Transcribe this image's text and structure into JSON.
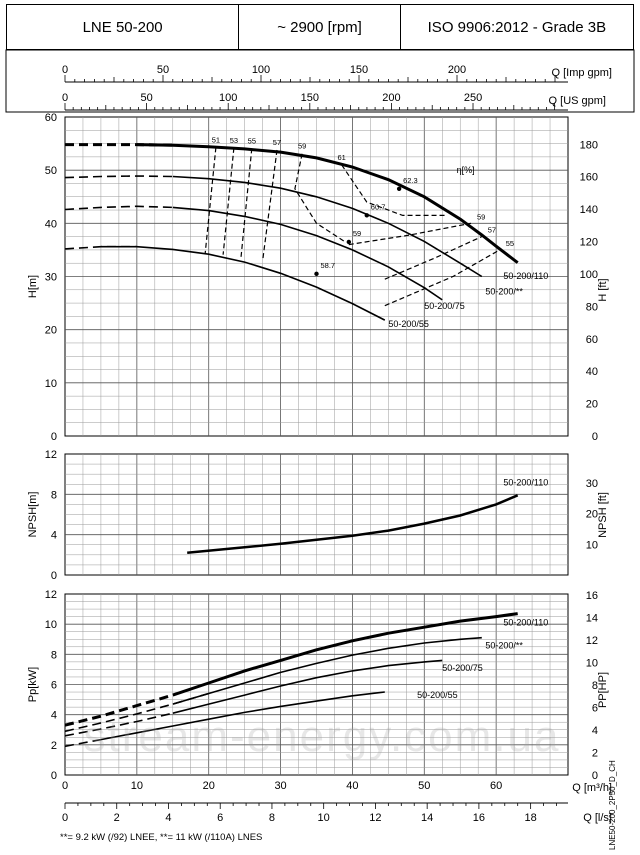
{
  "header": {
    "model": "LNE 50-200",
    "speed": "~ 2900 [rpm]",
    "standard": "ISO 9906:2012 - Grade 3B"
  },
  "footnote": "**= 9.2 kW (/92) LNEE, **= 11 kW (/110A) LNES",
  "doc_id": "LNE50-200_2P50_D_CH",
  "watermark": "stream-energy.com.ua",
  "chart_data": [
    {
      "type": "line",
      "panel": "head",
      "ylabel": "H[m]",
      "ylabel_right": "H [ft]",
      "xlim": [
        0,
        70
      ],
      "ylim": [
        0,
        60
      ],
      "ylim_right_ticks": [
        0,
        20,
        40,
        60,
        80,
        100,
        120,
        140,
        160,
        180
      ],
      "top_axis_imp": {
        "label": "Q [Imp gpm]",
        "ticks": [
          0,
          50,
          100,
          150,
          200
        ]
      },
      "top_axis_us": {
        "label": "Q [US gpm]",
        "ticks": [
          0,
          50,
          100,
          150,
          200,
          250
        ]
      },
      "series": [
        {
          "name": "50-200/110",
          "x": [
            0,
            5,
            10,
            15,
            20,
            25,
            30,
            35,
            40,
            45,
            50,
            55,
            58,
            60,
            63
          ],
          "y": [
            54.8,
            54.8,
            54.8,
            54.7,
            54.4,
            54.0,
            53.4,
            52.3,
            50.6,
            48.2,
            45.0,
            40.8,
            37.8,
            35.7,
            32.6
          ]
        },
        {
          "name": "50-200/**",
          "x": [
            0,
            5,
            10,
            15,
            20,
            25,
            30,
            35,
            40,
            45,
            50,
            55,
            58
          ],
          "y": [
            48.6,
            48.8,
            48.9,
            48.8,
            48.4,
            47.7,
            46.6,
            45.0,
            42.8,
            40.0,
            36.6,
            32.5,
            30.0
          ]
        },
        {
          "name": "50-200/75",
          "x": [
            0,
            5,
            10,
            15,
            20,
            25,
            30,
            35,
            40,
            45,
            50,
            52.5
          ],
          "y": [
            42.6,
            43.0,
            43.2,
            43.0,
            42.4,
            41.3,
            39.8,
            37.7,
            35.0,
            31.8,
            27.9,
            25.6
          ]
        },
        {
          "name": "50-200/55",
          "x": [
            0,
            5,
            10,
            15,
            20,
            25,
            30,
            35,
            40,
            44.5
          ],
          "y": [
            35.2,
            35.6,
            35.6,
            35.1,
            34.2,
            32.7,
            30.6,
            28.0,
            24.9,
            21.8
          ]
        }
      ],
      "efficiency_curves": [
        {
          "label": "51",
          "x": [
            21.0,
            19.5
          ],
          "y": [
            54.3,
            34.2
          ]
        },
        {
          "label": "53",
          "x": [
            23.5,
            22.0
          ],
          "y": [
            54.2,
            34.1
          ]
        },
        {
          "label": "55",
          "x": [
            26.0,
            24.5
          ],
          "y": [
            54.1,
            33.6
          ]
        },
        {
          "label": "57",
          "x": [
            29.5,
            27.5
          ],
          "y": [
            53.8,
            32.9
          ]
        },
        {
          "label": "59",
          "x": [
            33.0,
            32.0,
            35.0,
            39.0
          ],
          "y": [
            53.1,
            46.5,
            40.0,
            36.5
          ]
        },
        {
          "label": "61",
          "x": [
            38.5,
            42.0,
            47.0,
            53.0
          ],
          "y": [
            51.0,
            44.0,
            41.5,
            41.5
          ]
        },
        {
          "label": "59",
          "x": [
            39.5,
            48.0,
            56.5
          ],
          "y": [
            36.0,
            37.8,
            40.0
          ]
        },
        {
          "label": "57",
          "x": [
            44.5,
            51.5,
            58.0
          ],
          "y": [
            29.5,
            33.5,
            37.5
          ]
        },
        {
          "label": "55",
          "x": [
            44.5,
            54.0,
            60.5
          ],
          "y": [
            24.5,
            30.0,
            35.0
          ]
        }
      ],
      "best_efficiency_points": [
        {
          "label": "62.3",
          "x": 46.5,
          "y": 46.5
        },
        {
          "label": "60.7",
          "x": 42.0,
          "y": 41.5
        },
        {
          "label": "59",
          "x": 39.5,
          "y": 36.5
        },
        {
          "label": "58.7",
          "x": 35.0,
          "y": 30.5
        }
      ],
      "eta_label": "η[%]"
    },
    {
      "type": "line",
      "panel": "npsh",
      "ylabel": "NPSH[m]",
      "ylabel_right": "NPSH [ft]",
      "xlim": [
        0,
        70
      ],
      "ylim": [
        0,
        12
      ],
      "yticks": [
        0,
        4,
        8,
        12
      ],
      "yticks_right": [
        10,
        20,
        30
      ],
      "series": [
        {
          "name": "50-200/110",
          "x": [
            17,
            25,
            30,
            35,
            40,
            45,
            50,
            55,
            60,
            63
          ],
          "y": [
            2.2,
            2.75,
            3.1,
            3.5,
            3.9,
            4.4,
            5.1,
            5.9,
            7.0,
            7.9
          ]
        }
      ]
    },
    {
      "type": "line",
      "panel": "power",
      "ylabel": "Pp[kW]",
      "ylabel_right": "PP[HP]",
      "xlabel": "Q [m³/h]",
      "xlabel_ls": "Q [l/s]",
      "xlim": [
        0,
        70
      ],
      "ylim": [
        0,
        12
      ],
      "yticks": [
        0,
        2,
        4,
        6,
        8,
        10,
        12
      ],
      "yticks_right": [
        0,
        2,
        4,
        6,
        8,
        10,
        12,
        14,
        16
      ],
      "x_ticks_m3h": [
        0,
        10,
        20,
        30,
        40,
        50,
        60
      ],
      "x_ticks_ls": [
        0,
        2,
        4,
        6,
        8,
        10,
        12,
        14,
        16,
        18
      ],
      "series": [
        {
          "name": "50-200/110",
          "x": [
            0,
            5,
            10,
            15,
            20,
            25,
            30,
            35,
            40,
            45,
            50,
            55,
            60,
            63
          ],
          "y": [
            3.3,
            3.9,
            4.6,
            5.3,
            6.1,
            6.9,
            7.6,
            8.3,
            8.9,
            9.4,
            9.8,
            10.2,
            10.5,
            10.7
          ]
        },
        {
          "name": "50-200/**",
          "x": [
            0,
            5,
            10,
            15,
            20,
            25,
            30,
            35,
            40,
            45,
            50,
            55,
            58
          ],
          "y": [
            2.9,
            3.45,
            4.05,
            4.7,
            5.4,
            6.1,
            6.8,
            7.4,
            7.95,
            8.4,
            8.75,
            9.0,
            9.1
          ]
        },
        {
          "name": "50-200/75",
          "x": [
            0,
            5,
            10,
            15,
            20,
            25,
            30,
            35,
            40,
            45,
            50,
            52.5
          ],
          "y": [
            2.6,
            3.05,
            3.55,
            4.1,
            4.7,
            5.3,
            5.9,
            6.45,
            6.9,
            7.25,
            7.5,
            7.6
          ]
        },
        {
          "name": "50-200/55",
          "x": [
            0,
            5,
            10,
            15,
            20,
            25,
            30,
            35,
            40,
            44.5
          ],
          "y": [
            1.9,
            2.35,
            2.8,
            3.25,
            3.7,
            4.15,
            4.55,
            4.9,
            5.25,
            5.5
          ]
        }
      ]
    }
  ]
}
